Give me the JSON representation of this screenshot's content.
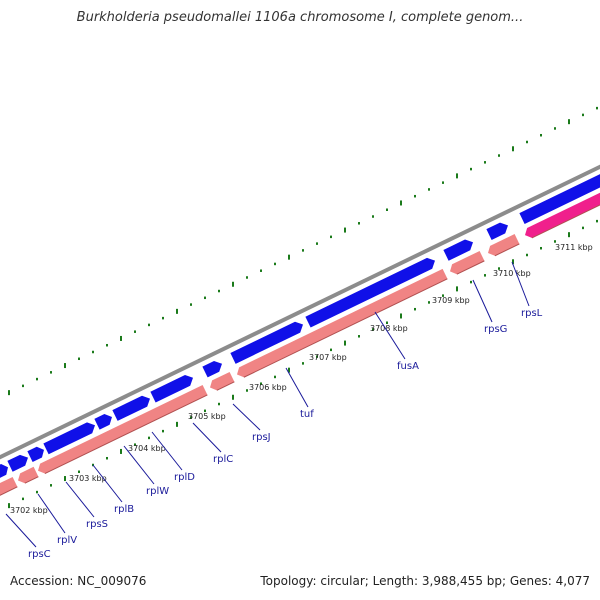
{
  "title": "Burkholderia pseudomallei 1106a chromosome I, complete genom...",
  "footer": {
    "accession": "Accession: NC_009076",
    "summary": "Topology: circular; Length: 3,988,455 bp; Genes: 4,077"
  },
  "colors": {
    "backbone": "#8c8c8c",
    "forward_cds": "#1010e8",
    "reverse_gene": "#f08484",
    "reverse_highlight": "#f0208c",
    "gc_skew": "#1a7a1a",
    "label": "#1a1a9a"
  },
  "kbp_ticks": [
    "3702 kbp",
    "3703 kbp",
    "3704 kbp",
    "3705 kbp",
    "3706 kbp",
    "3707 kbp",
    "3708 kbp",
    "3709 kbp",
    "3710 kbp",
    "3711 kbp"
  ],
  "genes": [
    "rpsC",
    "rplV",
    "rpsS",
    "rplB",
    "rplW",
    "rplD",
    "rplC",
    "rpsJ",
    "tuf",
    "fusA",
    "rpsG",
    "rpsL"
  ]
}
